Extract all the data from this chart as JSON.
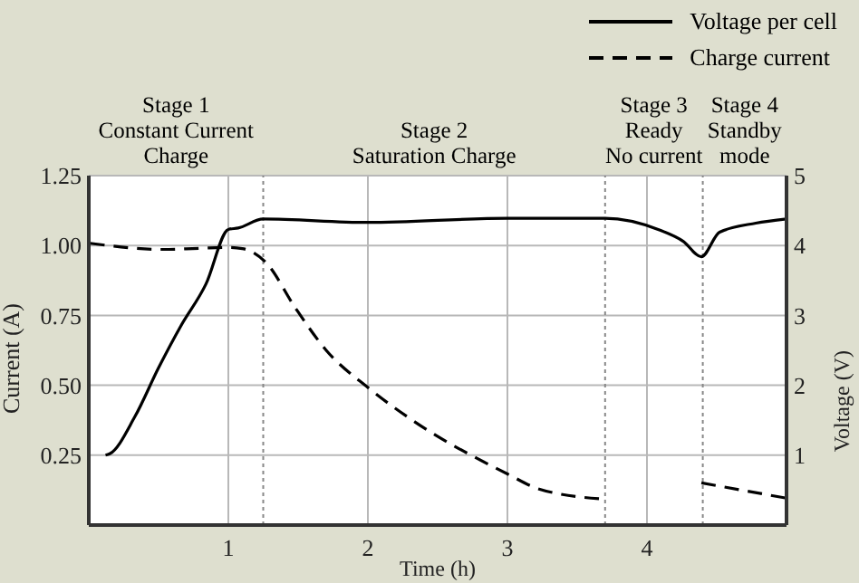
{
  "chart_data": {
    "type": "line",
    "xlabel": "Time (h)",
    "ylabel": "Current (A)",
    "y2label": "Voltage (V)",
    "annotations": [
      "Stage 1\nConstant Current\nCharge",
      "Stage 2\nSaturation Charge",
      "Stage 3\nReady\nNo current",
      "Stage 4\nStandby\nmode"
    ],
    "series": [
      {
        "name": "Voltage per cell",
        "color": "#000000",
        "axis": "y2",
        "line_style": "solid",
        "x": [
          0.12,
          0.15,
          0.33,
          0.5,
          0.66,
          0.84,
          1.0,
          1.07,
          1.25,
          2.0,
          3.0,
          3.7,
          4.08,
          4.26,
          4.39,
          4.52,
          4.78,
          5.0
        ],
        "values": [
          1.0,
          1.02,
          1.55,
          2.25,
          2.85,
          3.45,
          4.23,
          4.25,
          4.38,
          4.33,
          4.39,
          4.39,
          4.23,
          4.06,
          3.84,
          4.19,
          4.32,
          4.38
        ]
      },
      {
        "name": "Charge current",
        "color": "#000000",
        "line_style": "dashed",
        "x": [
          0.01,
          0.53,
          0.79,
          1.0,
          1.1,
          1.27,
          1.48,
          1.7,
          2.0,
          2.31,
          3.0,
          3.22,
          3.69
        ],
        "values": [
          1.008,
          0.986,
          0.99,
          0.993,
          0.989,
          0.939,
          0.777,
          0.626,
          0.492,
          0.378,
          0.183,
          0.13,
          0.093
        ]
      },
      {
        "color": "#000000",
        "line_style": "dashed",
        "x": [
          4.39,
          4.99
        ],
        "values": [
          0.151,
          0.097
        ]
      }
    ],
    "xlim": [
      0,
      5
    ],
    "xticks": [
      1,
      2,
      3,
      4
    ],
    "ylim": [
      0,
      1.25
    ],
    "yticks": [
      0.25,
      {
        "value": 0.5,
        "label": "0.50"
      },
      0.75,
      {
        "value": 1,
        "label": "1.00"
      },
      1.25
    ],
    "y2lim": [
      0,
      5
    ],
    "y2ticks": [
      1,
      2,
      3,
      4,
      5
    ],
    "ref_lines": [
      {
        "axis": "x",
        "value": 1.25,
        "line_style": "dotted",
        "color": "#888888"
      },
      {
        "axis": "x",
        "value": 3.7,
        "line_style": "dotted",
        "color": "#888888"
      },
      {
        "axis": "x",
        "value": 4.4,
        "line_style": "dotted",
        "color": "#888888"
      }
    ],
    "grid": true,
    "legend": "top right",
    "marker": "none"
  }
}
